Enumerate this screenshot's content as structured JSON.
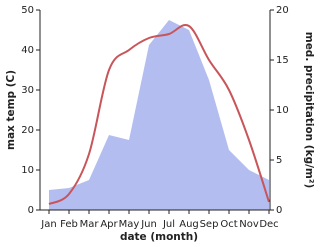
{
  "chart_data": {
    "type": "line",
    "x_label": "date (month)",
    "y_label": "max temp (C)",
    "y2_label": "med. precipitation (kg/m²)",
    "categories": [
      "Jan",
      "Feb",
      "Mar",
      "Apr",
      "May",
      "Jun",
      "Jul",
      "Aug",
      "Sep",
      "Oct",
      "Nov",
      "Dec"
    ],
    "ylim": [
      0,
      50
    ],
    "yticks": [
      0,
      10,
      20,
      30,
      40,
      50
    ],
    "y2lim": [
      0,
      20
    ],
    "y2ticks": [
      0,
      5,
      10,
      15,
      20
    ],
    "series": [
      {
        "name": "med. precipitation",
        "type": "area",
        "axis": "y2",
        "color": "#b3bdf0",
        "values": [
          2,
          2.2,
          3,
          7.5,
          7,
          16.5,
          19,
          18,
          13,
          6,
          4,
          3
        ]
      },
      {
        "name": "max temp",
        "type": "line",
        "axis": "y",
        "color": "#c8555a",
        "values": [
          1.5,
          4,
          14,
          35,
          40,
          43,
          44,
          46,
          37.5,
          30,
          17.5,
          2
        ]
      }
    ]
  }
}
